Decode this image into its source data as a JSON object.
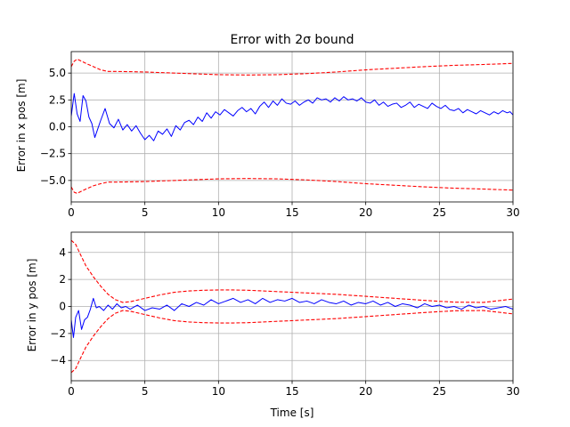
{
  "chart_data": [
    {
      "type": "line",
      "title": "Error with 2σ bound",
      "xlabel": "",
      "ylabel": "Error in x pos [m]",
      "xlim": [
        0,
        30
      ],
      "ylim": [
        -7,
        7
      ],
      "xticks": [
        0,
        5,
        10,
        15,
        20,
        25,
        30
      ],
      "yticks": [
        -5.0,
        -2.5,
        0.0,
        2.5,
        5.0
      ],
      "grid": true,
      "series": [
        {
          "role": "error",
          "color": "#0000ff",
          "style": "solid",
          "x": [
            0.0,
            0.2,
            0.4,
            0.6,
            0.8,
            1.0,
            1.2,
            1.4,
            1.6,
            1.8,
            2.0,
            2.3,
            2.6,
            2.9,
            3.2,
            3.5,
            3.8,
            4.1,
            4.4,
            4.7,
            5.0,
            5.3,
            5.6,
            5.9,
            6.2,
            6.5,
            6.8,
            7.1,
            7.4,
            7.7,
            8.0,
            8.3,
            8.6,
            8.9,
            9.2,
            9.5,
            9.8,
            10.1,
            10.4,
            10.7,
            11.0,
            11.3,
            11.6,
            11.9,
            12.2,
            12.5,
            12.8,
            13.1,
            13.4,
            13.7,
            14.0,
            14.3,
            14.6,
            14.9,
            15.2,
            15.5,
            15.8,
            16.1,
            16.4,
            16.7,
            17.0,
            17.3,
            17.6,
            17.9,
            18.2,
            18.5,
            18.8,
            19.1,
            19.4,
            19.7,
            20.0,
            20.3,
            20.6,
            20.9,
            21.2,
            21.5,
            21.8,
            22.1,
            22.4,
            22.7,
            23.0,
            23.3,
            23.6,
            23.9,
            24.2,
            24.5,
            24.8,
            25.1,
            25.4,
            25.7,
            26.0,
            26.3,
            26.6,
            26.9,
            27.2,
            27.5,
            27.8,
            28.1,
            28.4,
            28.7,
            29.0,
            29.3,
            29.6,
            29.8,
            30.0
          ],
          "y": [
            1.0,
            3.1,
            1.2,
            0.5,
            2.9,
            2.4,
            0.9,
            0.3,
            -1.0,
            -0.2,
            0.6,
            1.7,
            0.3,
            -0.1,
            0.7,
            -0.3,
            0.2,
            -0.4,
            0.1,
            -0.6,
            -1.2,
            -0.8,
            -1.3,
            -0.4,
            -0.7,
            -0.2,
            -0.9,
            0.1,
            -0.3,
            0.4,
            0.6,
            0.2,
            0.9,
            0.5,
            1.3,
            0.8,
            1.4,
            1.1,
            1.6,
            1.3,
            1.0,
            1.5,
            1.8,
            1.4,
            1.7,
            1.2,
            1.9,
            2.3,
            1.8,
            2.4,
            2.0,
            2.6,
            2.2,
            2.1,
            2.4,
            2.0,
            2.3,
            2.5,
            2.2,
            2.7,
            2.5,
            2.6,
            2.3,
            2.7,
            2.4,
            2.8,
            2.5,
            2.6,
            2.4,
            2.7,
            2.3,
            2.2,
            2.5,
            2.0,
            2.3,
            1.9,
            2.1,
            2.2,
            1.8,
            2.0,
            2.3,
            1.8,
            2.1,
            1.9,
            1.7,
            2.2,
            1.9,
            1.7,
            2.0,
            1.6,
            1.5,
            1.7,
            1.3,
            1.6,
            1.4,
            1.2,
            1.5,
            1.3,
            1.1,
            1.4,
            1.2,
            1.5,
            1.3,
            1.4,
            1.1
          ]
        },
        {
          "role": "upper 2σ bound",
          "color": "#ff0000",
          "style": "dashed",
          "x": [
            0.0,
            0.2,
            0.4,
            0.7,
            1.0,
            1.5,
            2.0,
            2.5,
            3.0,
            4.0,
            5.0,
            6.0,
            8.0,
            10.0,
            12.0,
            14.0,
            16.0,
            18.0,
            20.0,
            22.0,
            24.0,
            26.0,
            28.0,
            30.0
          ],
          "y": [
            5.6,
            6.1,
            6.3,
            6.1,
            5.9,
            5.6,
            5.3,
            5.15,
            5.15,
            5.13,
            5.1,
            5.05,
            4.95,
            4.85,
            4.82,
            4.85,
            4.95,
            5.1,
            5.3,
            5.45,
            5.6,
            5.72,
            5.8,
            5.9
          ]
        },
        {
          "role": "lower 2σ bound",
          "color": "#ff0000",
          "style": "dashed",
          "x": [
            0.0,
            0.2,
            0.4,
            0.7,
            1.0,
            1.5,
            2.0,
            2.5,
            3.0,
            4.0,
            5.0,
            6.0,
            8.0,
            10.0,
            12.0,
            14.0,
            16.0,
            18.0,
            20.0,
            22.0,
            24.0,
            26.0,
            28.0,
            30.0
          ],
          "y": [
            -5.6,
            -6.1,
            -6.2,
            -6.0,
            -5.8,
            -5.5,
            -5.3,
            -5.15,
            -5.15,
            -5.13,
            -5.1,
            -5.05,
            -4.95,
            -4.85,
            -4.82,
            -4.85,
            -4.95,
            -5.1,
            -5.3,
            -5.45,
            -5.6,
            -5.72,
            -5.8,
            -5.9
          ]
        }
      ]
    },
    {
      "type": "line",
      "title": "",
      "xlabel": "Time [s]",
      "ylabel": "Error in y pos [m]",
      "xlim": [
        0,
        30
      ],
      "ylim": [
        -5.5,
        5.5
      ],
      "xticks": [
        0,
        5,
        10,
        15,
        20,
        25,
        30
      ],
      "yticks": [
        -4,
        -2,
        0,
        2,
        4
      ],
      "grid": true,
      "series": [
        {
          "role": "error",
          "color": "#0000ff",
          "style": "solid",
          "x": [
            0.0,
            0.15,
            0.3,
            0.5,
            0.7,
            0.9,
            1.1,
            1.3,
            1.5,
            1.7,
            1.9,
            2.2,
            2.5,
            2.8,
            3.1,
            3.4,
            3.7,
            4.0,
            4.5,
            5.0,
            5.5,
            6.0,
            6.5,
            7.0,
            7.5,
            8.0,
            8.5,
            9.0,
            9.5,
            10.0,
            10.5,
            11.0,
            11.5,
            12.0,
            12.5,
            13.0,
            13.5,
            14.0,
            14.5,
            15.0,
            15.5,
            16.0,
            16.5,
            17.0,
            17.5,
            18.0,
            18.5,
            19.0,
            19.5,
            20.0,
            20.5,
            21.0,
            21.5,
            22.0,
            22.5,
            23.0,
            23.5,
            24.0,
            24.5,
            25.0,
            25.5,
            26.0,
            26.5,
            27.0,
            27.5,
            28.0,
            28.5,
            29.0,
            29.5,
            30.0
          ],
          "y": [
            -1.0,
            -2.3,
            -0.8,
            -0.3,
            -1.7,
            -1.0,
            -0.8,
            -0.2,
            0.6,
            -0.1,
            0.0,
            -0.3,
            0.1,
            -0.2,
            0.2,
            -0.1,
            0.0,
            -0.2,
            0.1,
            -0.3,
            -0.1,
            -0.2,
            0.1,
            -0.3,
            0.2,
            0.0,
            0.3,
            0.1,
            0.5,
            0.2,
            0.4,
            0.6,
            0.3,
            0.5,
            0.2,
            0.6,
            0.3,
            0.5,
            0.4,
            0.6,
            0.3,
            0.4,
            0.2,
            0.5,
            0.3,
            0.2,
            0.4,
            0.1,
            0.3,
            0.2,
            0.4,
            0.1,
            0.3,
            0.0,
            0.2,
            0.1,
            -0.1,
            0.2,
            0.0,
            0.1,
            -0.1,
            0.0,
            -0.2,
            0.1,
            -0.1,
            0.0,
            -0.2,
            -0.1,
            0.0,
            -0.2
          ]
        },
        {
          "role": "upper 2σ bound",
          "color": "#ff0000",
          "style": "dashed",
          "x": [
            0.0,
            0.3,
            0.6,
            1.0,
            1.5,
            2.0,
            2.5,
            3.0,
            3.5,
            4.0,
            5.0,
            6.0,
            7.0,
            8.0,
            9.0,
            10.0,
            11.0,
            12.0,
            14.0,
            16.0,
            18.0,
            20.0,
            22.0,
            24.0,
            26.0,
            28.0,
            30.0
          ],
          "y": [
            4.9,
            4.6,
            3.9,
            3.0,
            2.2,
            1.5,
            0.9,
            0.5,
            0.3,
            0.35,
            0.6,
            0.85,
            1.05,
            1.15,
            1.2,
            1.22,
            1.22,
            1.2,
            1.1,
            1.0,
            0.9,
            0.75,
            0.6,
            0.45,
            0.32,
            0.3,
            0.55
          ]
        },
        {
          "role": "lower 2σ bound",
          "color": "#ff0000",
          "style": "dashed",
          "x": [
            0.0,
            0.3,
            0.6,
            1.0,
            1.5,
            2.0,
            2.5,
            3.0,
            3.5,
            4.0,
            5.0,
            6.0,
            7.0,
            8.0,
            9.0,
            10.0,
            11.0,
            12.0,
            14.0,
            16.0,
            18.0,
            20.0,
            22.0,
            24.0,
            26.0,
            28.0,
            30.0
          ],
          "y": [
            -4.9,
            -4.6,
            -3.9,
            -3.0,
            -2.2,
            -1.5,
            -0.9,
            -0.5,
            -0.3,
            -0.35,
            -0.6,
            -0.85,
            -1.05,
            -1.15,
            -1.2,
            -1.22,
            -1.22,
            -1.2,
            -1.1,
            -1.0,
            -0.9,
            -0.75,
            -0.6,
            -0.45,
            -0.32,
            -0.3,
            -0.55
          ]
        }
      ]
    }
  ]
}
